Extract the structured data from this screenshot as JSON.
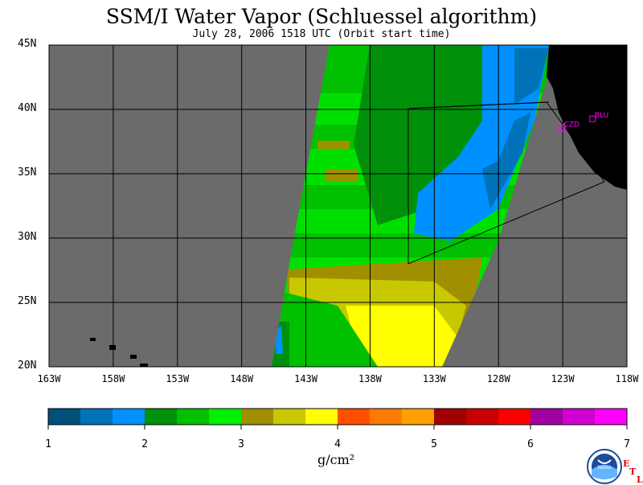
{
  "header": {
    "title": "SSM/I Water Vapor (Schluessel algorithm)",
    "subtitle": "July 28, 2006  1518 UTC  (Orbit start time)"
  },
  "axes": {
    "lat_labels": [
      "45N",
      "40N",
      "35N",
      "30N",
      "25N",
      "20N"
    ],
    "lon_labels": [
      "163W",
      "158W",
      "153W",
      "148W",
      "143W",
      "138W",
      "133W",
      "128W",
      "123W",
      "118W"
    ]
  },
  "stations": [
    {
      "label": "CZD",
      "lon": -123.1,
      "lat": 38.6
    },
    {
      "label": "BLU",
      "lon": -120.7,
      "lat": 39.3
    }
  ],
  "colorbar": {
    "ticks": [
      "1",
      "2",
      "3",
      "4",
      "5",
      "6",
      "7"
    ],
    "unit": "g/cm²",
    "colors": [
      "#00507a",
      "#0072b8",
      "#0090ff",
      "#00900a",
      "#00c000",
      "#00f000",
      "#a09000",
      "#c8c800",
      "#ffff00",
      "#ff5000",
      "#ff7a00",
      "#ffa000",
      "#a00000",
      "#c80000",
      "#ff0000",
      "#a000a0",
      "#d000d0",
      "#ff00ff"
    ]
  },
  "logo": {
    "text": "NOAA",
    "etl": [
      "E",
      "T",
      "L"
    ]
  },
  "colors": {
    "land": "#000000",
    "nodata": "#6b6b6b",
    "station": "#ff00ff"
  }
}
